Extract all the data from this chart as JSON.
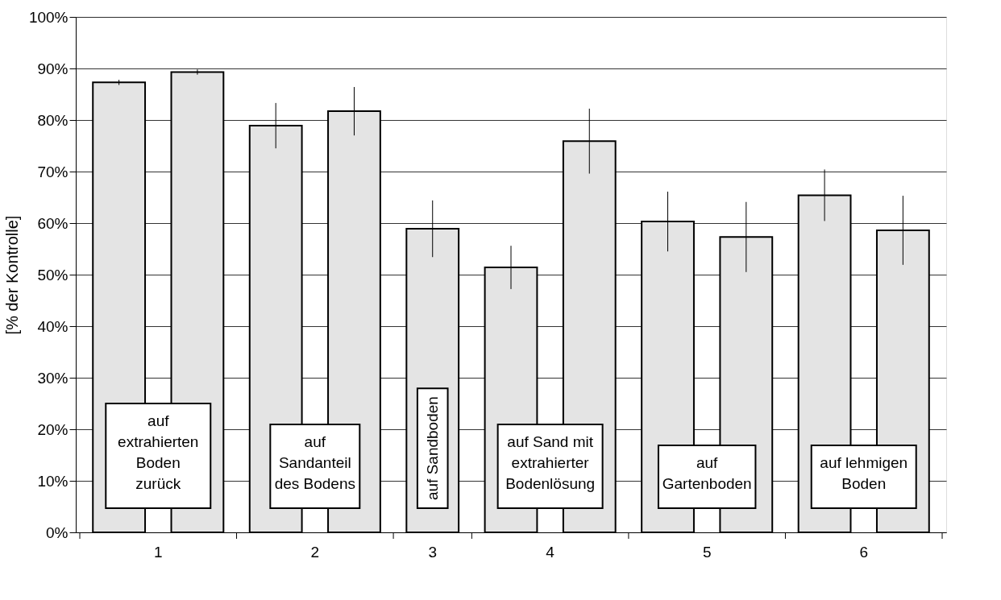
{
  "chart_data": {
    "type": "bar",
    "ylabel": "[% der Kontrolle]",
    "categories": [
      "1",
      null,
      "2",
      null,
      "3",
      "4",
      null,
      "5",
      null,
      "6",
      null
    ],
    "values": [
      87.3,
      89.3,
      78.9,
      81.7,
      58.9,
      51.4,
      75.9,
      60.3,
      57.3,
      65.4,
      58.6
    ],
    "errors": [
      0.5,
      0.5,
      4.4,
      4.7,
      5.5,
      4.2,
      6.3,
      5.8,
      6.8,
      5.0,
      6.7
    ],
    "color": "#e4e4e4",
    "ylim": [
      0,
      100
    ],
    "yticks": [
      {
        "value": 0,
        "label": "0%"
      },
      {
        "value": 10,
        "label": "10%"
      },
      {
        "value": 20,
        "label": "20%"
      },
      {
        "value": 30,
        "label": "30%"
      },
      {
        "value": 40,
        "label": "40%"
      },
      {
        "value": 50,
        "label": "50%"
      },
      {
        "value": 60,
        "label": "60%"
      },
      {
        "value": 70,
        "label": "70%"
      },
      {
        "value": 80,
        "label": "80%"
      },
      {
        "value": 90,
        "label": "90%"
      },
      {
        "value": 100,
        "label": "100%"
      }
    ],
    "grid": "y",
    "annotations": [
      "auf\nextrahierten\nBoden\nzurück",
      "auf\nSandanteil\ndes Bodens",
      "auf Sandboden",
      "auf Sand mit\nextrahierter\nBodenlösung",
      "auf\nGartenboden",
      "auf lehmigen\nBoden"
    ]
  }
}
